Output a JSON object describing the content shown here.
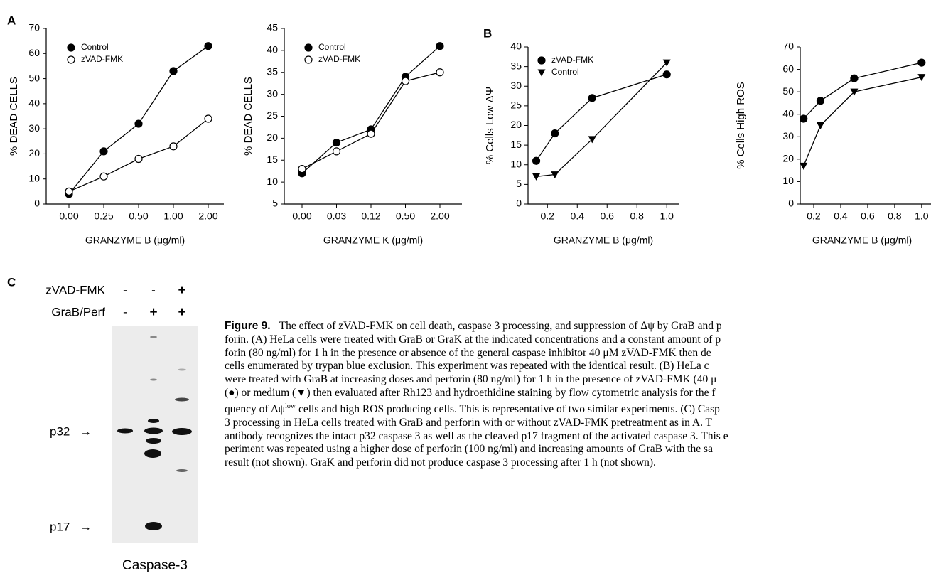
{
  "panel_labels": [
    "A",
    "B",
    "C"
  ],
  "chart_data": [
    {
      "type": "line",
      "y_label": "% DEAD CELLS",
      "x_label": "GRANZYME B (μg/ml)",
      "categories": [
        "0.00",
        "0.25",
        "0.50",
        "1.00",
        "2.00"
      ],
      "series": [
        {
          "name": "Control",
          "color": "#000000",
          "marker": "circle-filled",
          "values": [
            4,
            21,
            32,
            53,
            63
          ]
        },
        {
          "name": "zVAD-FMK",
          "color": "#000000",
          "marker": "circle-open",
          "values": [
            5,
            11,
            18,
            23,
            34
          ]
        }
      ],
      "ylim": [
        0,
        70
      ],
      "yticks": [
        0,
        10,
        20,
        30,
        40,
        50,
        60,
        70
      ],
      "legend": "upper-left"
    },
    {
      "type": "line",
      "y_label": "% DEAD CELLS",
      "x_label": "GRANZYME K (μg/ml)",
      "categories": [
        "0.00",
        "0.03",
        "0.12",
        "0.50",
        "2.00"
      ],
      "series": [
        {
          "name": "Control",
          "color": "#000000",
          "marker": "circle-filled",
          "values": [
            12,
            19,
            22,
            34,
            41
          ]
        },
        {
          "name": "zVAD-FMK",
          "color": "#000000",
          "marker": "circle-open",
          "values": [
            13,
            17,
            21,
            33,
            35
          ]
        }
      ],
      "ylim": [
        5,
        45
      ],
      "yticks": [
        5,
        10,
        15,
        20,
        25,
        30,
        35,
        40,
        45
      ],
      "legend": "upper-left"
    },
    {
      "type": "line",
      "y_label": "% Cells Low ΔΨ",
      "x_label": "GRANZYME B (μg/ml)",
      "x": [
        0.125,
        0.25,
        0.5,
        1.0
      ],
      "series": [
        {
          "name": "zVAD-FMK",
          "color": "#000000",
          "marker": "circle-filled",
          "values": [
            11,
            18,
            27,
            33
          ]
        },
        {
          "name": "Control",
          "color": "#000000",
          "marker": "triangle-down",
          "values": [
            7,
            7.5,
            16.5,
            36
          ]
        }
      ],
      "xlim": [
        0.07,
        1.08
      ],
      "xticks": [
        0.2,
        0.4,
        0.6,
        0.8,
        {
          "value": 1,
          "label": "1.0"
        }
      ],
      "ylim": [
        0,
        40
      ],
      "yticks": [
        0,
        5,
        10,
        15,
        20,
        25,
        30,
        35,
        40
      ],
      "legend": "upper-left"
    },
    {
      "type": "line",
      "y_label": "% Cells High ROS",
      "x_label": "GRANZYME B (μg/ml)",
      "x": [
        0.125,
        0.25,
        0.5,
        1.0
      ],
      "series": [
        {
          "name": "zVAD-FMK",
          "color": "#000000",
          "marker": "circle-filled",
          "values": [
            38,
            46,
            56,
            63
          ]
        },
        {
          "name": "Control",
          "color": "#000000",
          "marker": "triangle-down",
          "values": [
            17,
            35,
            50,
            56.5
          ]
        }
      ],
      "xlim": [
        0.1,
        1.08
      ],
      "xticks": [
        0.2,
        0.4,
        0.6,
        0.8,
        {
          "value": 1,
          "label": "1.0"
        }
      ],
      "ylim": [
        0,
        70
      ],
      "yticks": [
        0,
        10,
        20,
        30,
        40,
        50,
        60,
        70
      ]
    }
  ],
  "blot": {
    "rows": [
      {
        "label": "zVAD-FMK",
        "signs": [
          "-",
          "-",
          "+"
        ]
      },
      {
        "label": "GraB/Perf",
        "signs": [
          "-",
          "+",
          "+"
        ]
      }
    ],
    "bands": [
      "p32",
      "p17"
    ],
    "arrow": "→",
    "title": "Caspase-3"
  },
  "caption": {
    "figure_label": "Figure 9.",
    "lines": [
      "The effect of zVAD-FMK on cell death, caspase 3 processing, and suppression of Δψ by GraB and p",
      "forin. (A) HeLa cells were treated with GraB or GraK at the indicated concentrations and a constant amount of p",
      "forin (80 ng/ml) for 1 h in the presence or absence of the general caspase inhibitor 40 μM zVAD-FMK then de",
      "cells enumerated by trypan blue exclusion. This experiment was repeated with the identical result. (B) HeLa c",
      "were treated with GraB at increasing doses and perforin (80 ng/ml) for 1 h in the presence of zVAD-FMK (40 μ",
      "(●) or medium (▼) then evaluated after Rh123 and hydroethidine staining by flow cytometric analysis for the f",
      [
        "quency of Δψ",
        "low",
        " cells and high ROS producing cells. This is representative of two similar experiments. (C) Casp"
      ],
      "3 processing in HeLa cells treated with GraB and perforin with or without zVAD-FMK pretreatment as in A. T",
      "antibody recognizes the intact p32 caspase 3 as well as the cleaved p17 fragment of the activated caspase 3. This e",
      "periment was repeated using a higher dose of perforin (100 ng/ml) and increasing amounts of GraB with the sa",
      "result (not shown). GraK and perforin did not produce caspase 3 processing after 1 h (not shown)."
    ]
  }
}
